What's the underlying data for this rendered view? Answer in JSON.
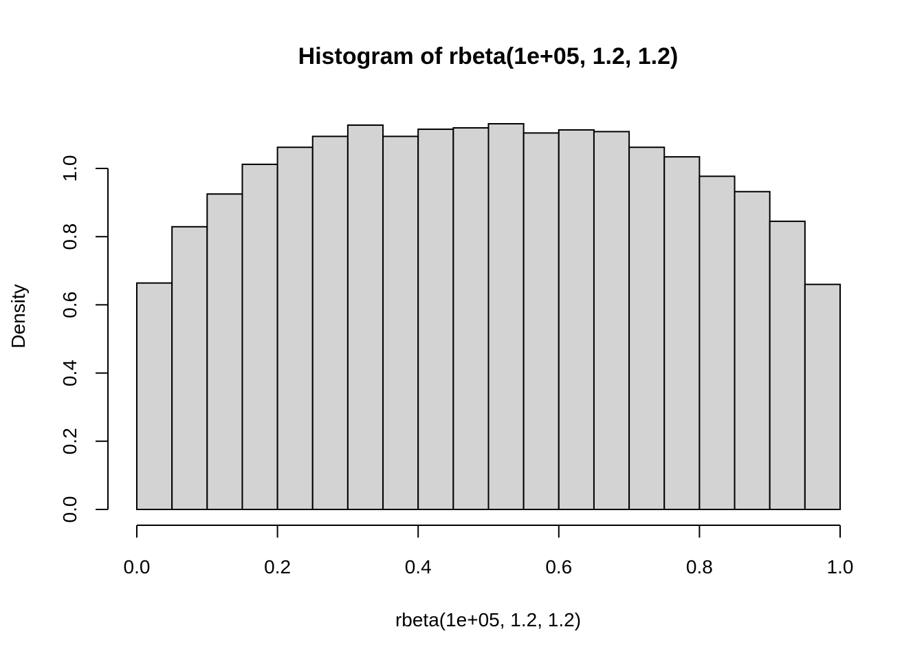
{
  "chart_data": {
    "type": "bar",
    "title": "Histogram of rbeta(1e+05, 1.2, 1.2)",
    "xlabel": "rbeta(1e+05, 1.2, 1.2)",
    "ylabel": "Density",
    "bin_edges": [
      0.0,
      0.05,
      0.1,
      0.15,
      0.2,
      0.25,
      0.3,
      0.35,
      0.4,
      0.45,
      0.5,
      0.55,
      0.6,
      0.65,
      0.7,
      0.75,
      0.8,
      0.85,
      0.9,
      0.95,
      1.0
    ],
    "values": [
      0.664,
      0.829,
      0.925,
      1.012,
      1.062,
      1.094,
      1.127,
      1.094,
      1.115,
      1.119,
      1.131,
      1.104,
      1.113,
      1.108,
      1.062,
      1.034,
      0.977,
      0.932,
      0.845,
      0.66
    ],
    "xlim": [
      0.0,
      1.0
    ],
    "ylim": [
      0.0,
      1.1
    ],
    "xticks": [
      "0.0",
      "0.2",
      "0.4",
      "0.6",
      "0.8",
      "1.0"
    ],
    "yticks": [
      "0.0",
      "0.2",
      "0.4",
      "0.6",
      "0.8",
      "1.0"
    ],
    "bar_color": "#d3d3d3",
    "grid": false,
    "legend": "none"
  }
}
